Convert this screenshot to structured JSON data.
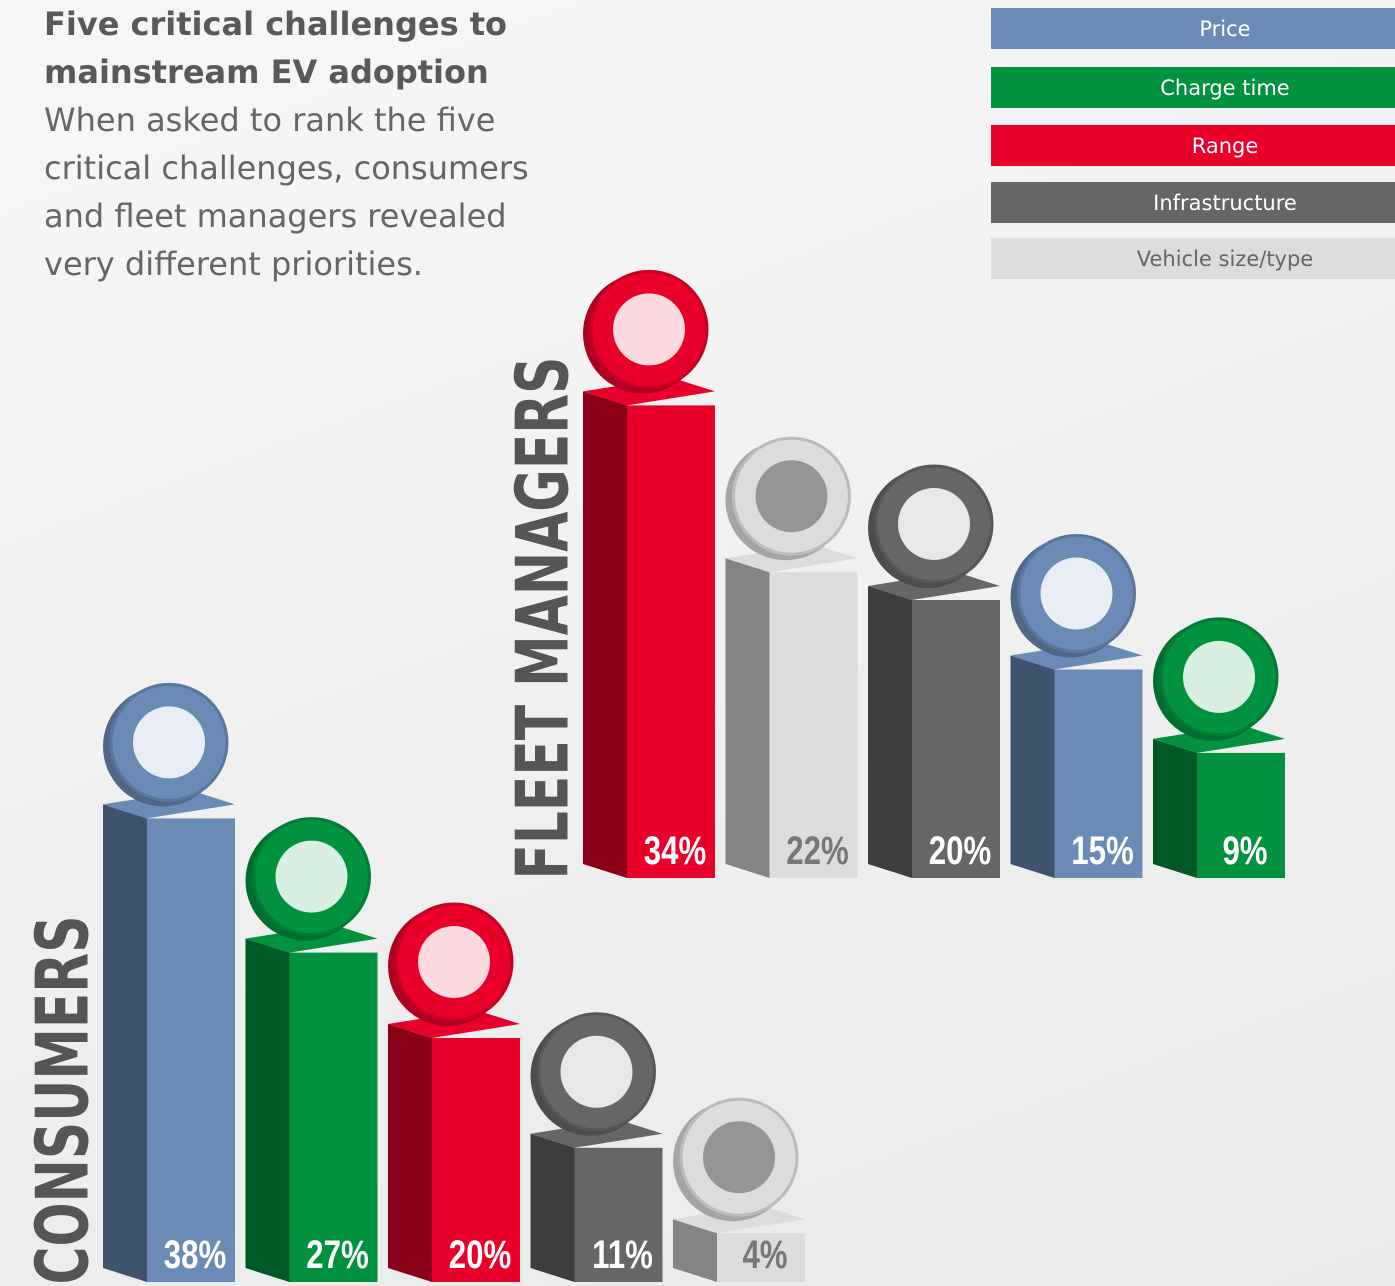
{
  "title": "Five critical challenges to mainstream EV adoption",
  "description": "When asked to rank the five critical challenges, consumers and fleet managers revealed very different priorities.",
  "legend": [
    {
      "name": "Price",
      "color": "#6a8bb5"
    },
    {
      "name": "Charge time",
      "color": "#00923f"
    },
    {
      "name": "Range",
      "color": "#e8002a"
    },
    {
      "name": "Infrastructure",
      "color": "#666666"
    },
    {
      "name": "Vehicle size/type",
      "color": "#dcdcdc"
    }
  ],
  "chart_data": [
    {
      "type": "bar",
      "label": "CONSUMERS",
      "categories": [
        "Price",
        "Charge time",
        "Range",
        "Infrastructure",
        "Vehicle size/type"
      ],
      "values": [
        38,
        27,
        20,
        11,
        4
      ],
      "value_labels": [
        "38%",
        "27%",
        "20%",
        "11%",
        "4%"
      ]
    },
    {
      "type": "bar",
      "label": "FLEET MANAGERS",
      "categories": [
        "Range",
        "Vehicle size/type",
        "Infrastructure",
        "Price",
        "Charge time"
      ],
      "values": [
        34,
        22,
        20,
        15,
        9
      ],
      "value_labels": [
        "34%",
        "22%",
        "20%",
        "15%",
        "9%"
      ]
    }
  ]
}
